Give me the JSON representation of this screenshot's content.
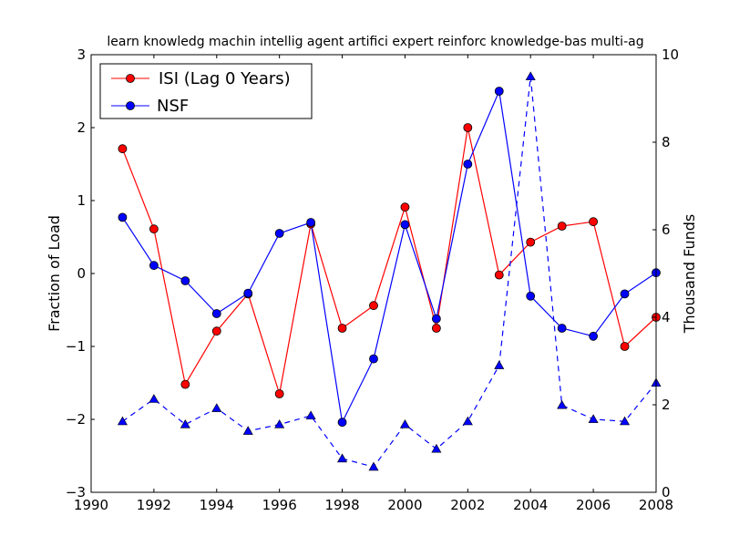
{
  "chart_data": {
    "type": "line",
    "title": "learn knowledg machin intellig agent artifici expert reinforc knowledge-bas multi-ag",
    "ylabel": "Fraction of Load",
    "y2label": "Thousand Funds",
    "xlim": [
      1990,
      2008
    ],
    "ylim": [
      -3,
      3
    ],
    "y2lim": [
      0,
      10
    ],
    "xticks": [
      1990,
      1992,
      1994,
      1996,
      1998,
      2000,
      2002,
      2004,
      2006,
      2008
    ],
    "yticks": [
      -3,
      -2,
      -1,
      0,
      1,
      2,
      3
    ],
    "y2ticks": [
      0,
      2,
      4,
      6,
      8,
      10
    ],
    "legend_position": "top-left",
    "series": [
      {
        "name": "ISI (Lag 0 Years)",
        "axis": "left",
        "color": "#ff0000",
        "marker": "circle",
        "linestyle": "solid",
        "x": [
          1991,
          1992,
          1993,
          1994,
          1995,
          1996,
          1997,
          1998,
          1999,
          2000,
          2001,
          2002,
          2003,
          2004,
          2005,
          2006,
          2007,
          2008
        ],
        "y": [
          1.71,
          0.61,
          -1.52,
          -0.79,
          -0.28,
          -1.65,
          0.68,
          -0.75,
          -0.44,
          0.91,
          -0.75,
          2.0,
          -0.02,
          0.43,
          0.65,
          0.71,
          -1.0,
          -0.6
        ]
      },
      {
        "name": "NSF",
        "axis": "left",
        "color": "#0000ff",
        "marker": "circle",
        "linestyle": "solid",
        "x": [
          1991,
          1992,
          1993,
          1994,
          1995,
          1996,
          1997,
          1998,
          1999,
          2000,
          2001,
          2002,
          2003,
          2004,
          2005,
          2006,
          2007,
          2008
        ],
        "y": [
          0.77,
          0.11,
          -0.1,
          -0.55,
          -0.27,
          0.55,
          0.7,
          -2.04,
          -1.17,
          0.67,
          -0.62,
          1.5,
          2.5,
          -0.31,
          -0.75,
          -0.86,
          -0.28,
          0.01
        ]
      },
      {
        "axis": "right",
        "color": "#0000ff",
        "marker": "triangle",
        "linestyle": "dashed",
        "x": [
          1991,
          1992,
          1993,
          1994,
          1995,
          1996,
          1997,
          1998,
          1999,
          2000,
          2001,
          2002,
          2003,
          2004,
          2005,
          2006,
          2007,
          2008
        ],
        "y": [
          1.62,
          2.13,
          1.55,
          1.92,
          1.4,
          1.55,
          1.75,
          0.77,
          0.58,
          1.55,
          0.99,
          1.62,
          2.9,
          9.5,
          1.99,
          1.67,
          1.62,
          2.5
        ]
      }
    ]
  }
}
